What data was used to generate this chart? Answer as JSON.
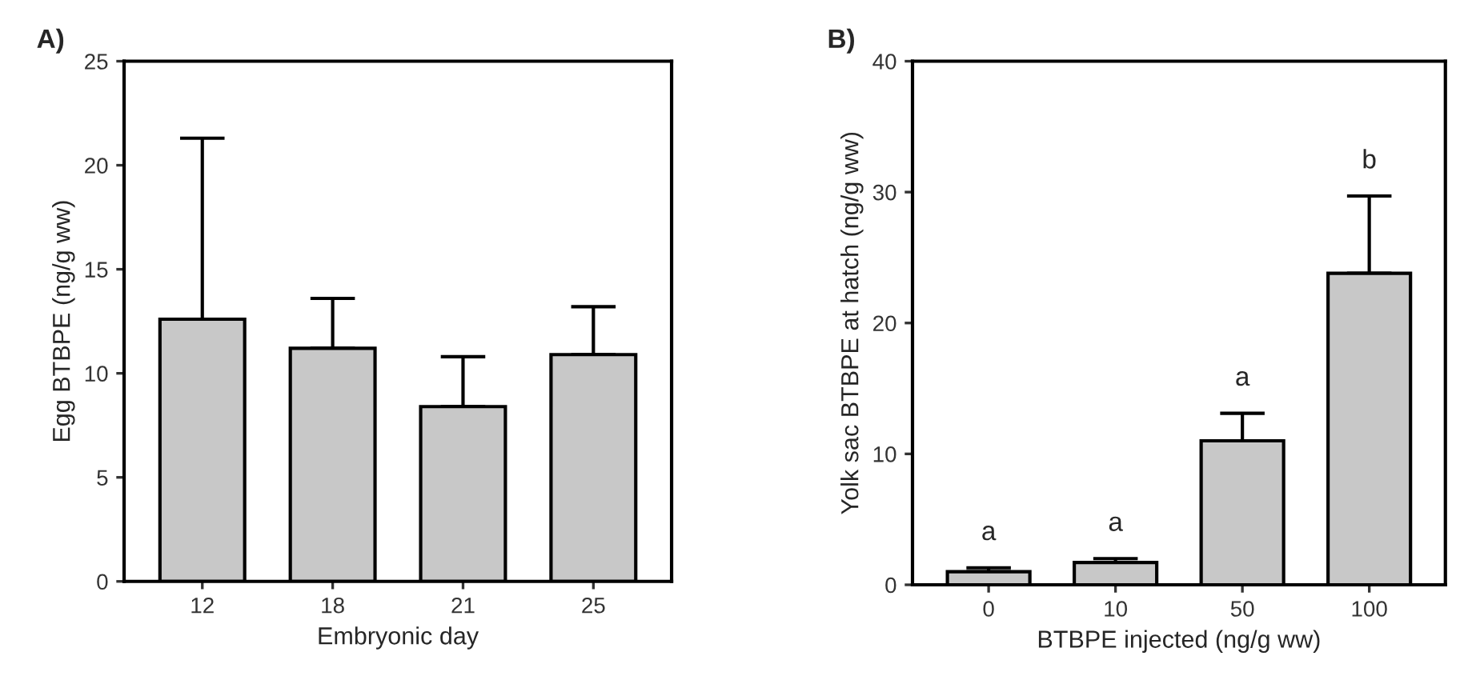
{
  "chart_data": [
    {
      "type": "bar",
      "title": "A)",
      "xlabel": "Embryonic day",
      "ylabel": "Egg BTBPE (ng/g ww)",
      "categories": [
        "12",
        "18",
        "21",
        "25"
      ],
      "values": [
        12.6,
        11.2,
        8.4,
        10.9
      ],
      "errors": [
        [
          12.6,
          21.3
        ],
        [
          11.2,
          13.6
        ],
        [
          8.4,
          10.8
        ],
        [
          10.9,
          13.2
        ]
      ],
      "color": "#c8c8c8",
      "ylim": [
        0,
        25
      ],
      "yticks": [
        0,
        5,
        10,
        15,
        20,
        25
      ],
      "grid": false,
      "legend": false
    },
    {
      "type": "bar",
      "title": "B)",
      "xlabel": "BTBPE injected (ng/g ww)",
      "ylabel": "Yolk sac BTBPE at hatch (ng/g ww)",
      "categories": [
        "0",
        "10",
        "50",
        "100"
      ],
      "values": [
        1.0,
        1.7,
        11.0,
        23.8
      ],
      "errors": [
        [
          1.0,
          1.3
        ],
        [
          1.7,
          2.0
        ],
        [
          11.0,
          13.1
        ],
        [
          23.8,
          29.7
        ]
      ],
      "color": "#c8c8c8",
      "ylim": [
        0,
        40
      ],
      "yticks": [
        0,
        10,
        20,
        30,
        40
      ],
      "grid": false,
      "legend": false,
      "annotations": [
        {
          "text": "a",
          "x": "0",
          "y": 1.3
        },
        {
          "text": "a",
          "x": "10",
          "y": 2.0
        },
        {
          "text": "a",
          "x": "50",
          "y": 13.1
        },
        {
          "text": "b",
          "x": "100",
          "y": 29.7
        }
      ]
    }
  ]
}
